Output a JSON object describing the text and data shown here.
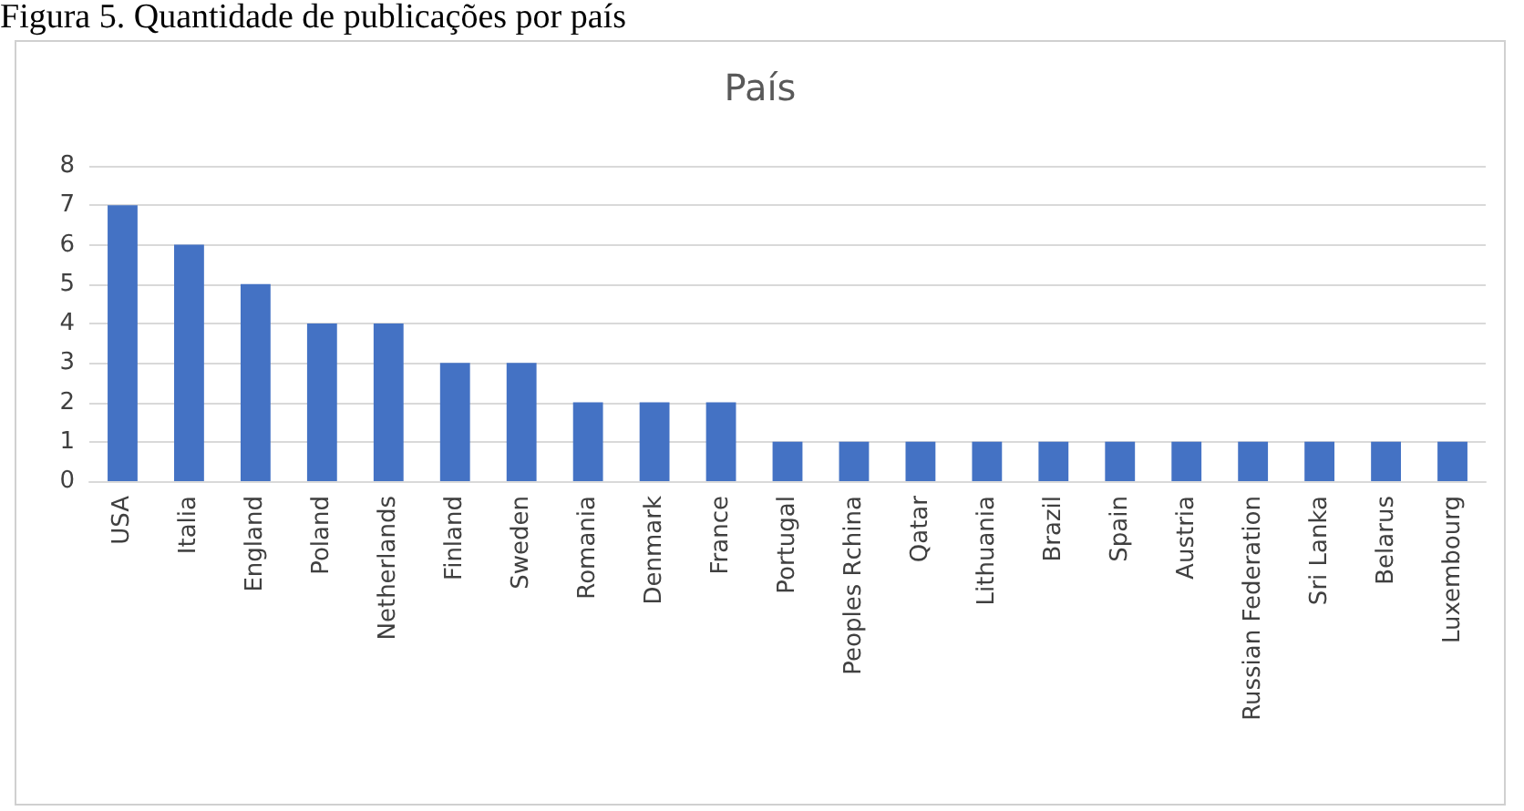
{
  "chart_data": {
    "type": "bar",
    "title": "País",
    "annotations": [
      "Figura 5. Quantidade de publicações por país"
    ],
    "categories": [
      "USA",
      "Italia",
      "England",
      "Poland",
      "Netherlands",
      "Finland",
      "Sweden",
      "Romania",
      "Denmark",
      "France",
      "Portugal",
      "Peoples Rchina",
      "Qatar",
      "Lithuania",
      "Brazil",
      "Spain",
      "Austria",
      "Russian Federation",
      "Sri Lanka",
      "Belarus",
      "Luxembourg"
    ],
    "values": [
      7,
      6,
      5,
      4,
      4,
      3,
      3,
      2,
      2,
      2,
      1,
      1,
      1,
      1,
      1,
      1,
      1,
      1,
      1,
      1,
      1
    ],
    "color": "#4472c4",
    "ylim": [
      0,
      8
    ],
    "yticks": [
      0,
      1,
      2,
      3,
      4,
      5,
      6,
      7,
      8
    ],
    "grid": "y"
  }
}
